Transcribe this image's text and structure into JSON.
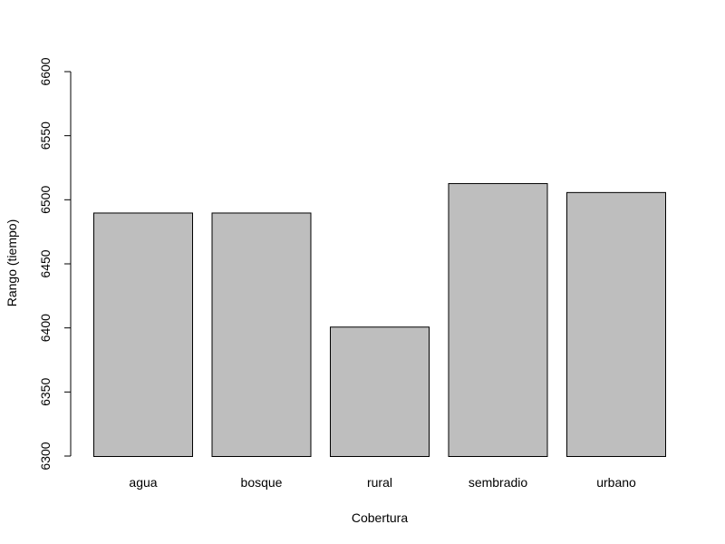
{
  "chart_data": {
    "type": "bar",
    "title": "",
    "xlabel": "Cobertura",
    "ylabel": "Rango (tiempo)",
    "categories": [
      "agua",
      "bosque",
      "rural",
      "sembradio",
      "urbano"
    ],
    "values": [
      6490,
      6490,
      6401,
      6513,
      6506
    ],
    "ylim": [
      6300,
      6600
    ],
    "yticks": [
      6300,
      6350,
      6400,
      6450,
      6500,
      6550,
      6600
    ],
    "grid": false,
    "bar_color": "#bebebe",
    "bar_border_color": "#000000"
  }
}
